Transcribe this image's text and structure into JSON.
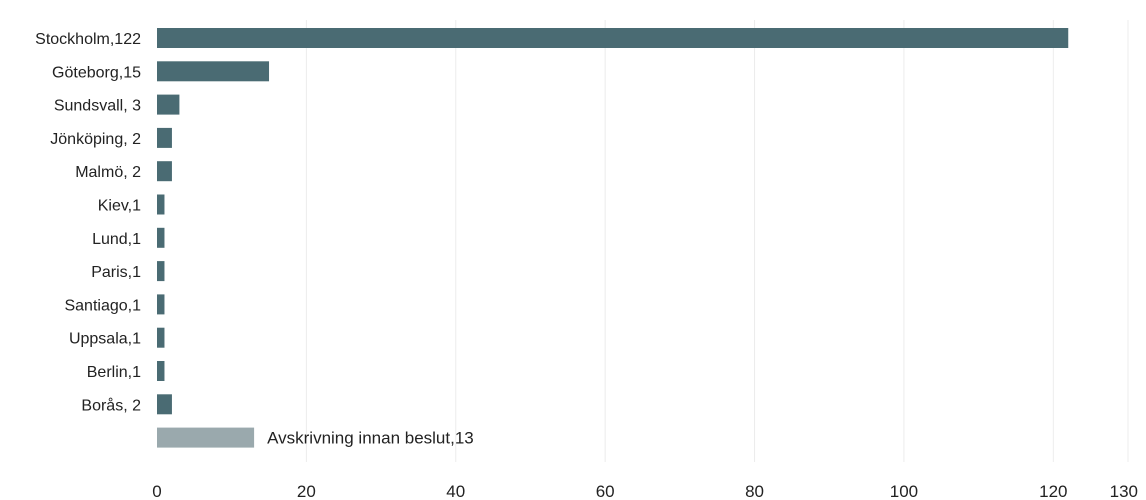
{
  "chart_data": {
    "type": "bar",
    "orientation": "horizontal",
    "categories": [
      "Stockholm,122",
      "Göteborg,15",
      "Sundsvall, 3",
      "Jönköping, 2",
      "Malmö, 2",
      "Kiev,1",
      "Lund,1",
      "Paris,1",
      "Santiago,1",
      "Uppsala,1",
      "Berlin,1",
      "Borås, 2"
    ],
    "values": [
      122,
      15,
      3,
      2,
      2,
      1,
      1,
      1,
      1,
      1,
      1,
      2
    ],
    "bar_color": "#4a6b73",
    "legend": {
      "label": "Avskrivning innan beslut,13",
      "value": 13,
      "color": "#9aa9ad"
    },
    "xlim": [
      0,
      130
    ],
    "xticks": [
      0,
      20,
      40,
      60,
      80,
      100,
      120,
      130
    ],
    "grid": true
  }
}
